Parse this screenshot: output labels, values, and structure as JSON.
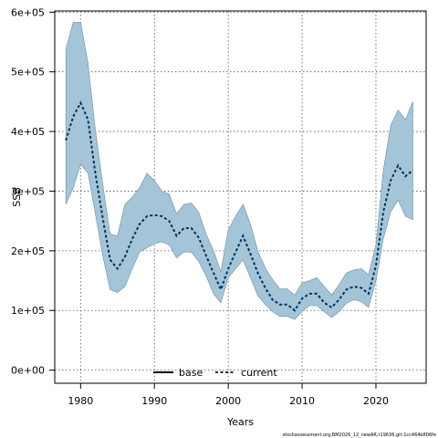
{
  "chart_data": {
    "type": "area",
    "xlabel": "Years",
    "ylabel": "SSB",
    "xlim": [
      1976.5,
      2026.8
    ],
    "ylim": [
      -22000,
      602000
    ],
    "x_ticks": [
      1980,
      1990,
      2000,
      2010,
      2020
    ],
    "y_ticks": [
      0,
      100000,
      200000,
      300000,
      400000,
      500000,
      600000
    ],
    "x_tick_labels": [
      "1980",
      "1990",
      "2000",
      "2010",
      "2020"
    ],
    "y_tick_labels": [
      "0e+00",
      "1e+05",
      "2e+05",
      "3e+05",
      "4e+05",
      "5e+05",
      "6e+05"
    ],
    "grid": true,
    "legend_position": "bottom-center",
    "x": [
      1978,
      1979,
      1980,
      1981,
      1982,
      1983,
      1984,
      1985,
      1986,
      1987,
      1988,
      1989,
      1990,
      1991,
      1992,
      1993,
      1994,
      1995,
      1996,
      1997,
      1998,
      1999,
      2000,
      2001,
      2002,
      2003,
      2004,
      2005,
      2006,
      2007,
      2008,
      2009,
      2010,
      2011,
      2012,
      2013,
      2014,
      2015,
      2016,
      2017,
      2018,
      2019,
      2020,
      2021,
      2022,
      2023,
      2024,
      2025
    ],
    "series": [
      {
        "name": "base",
        "style": "solid",
        "color": "#000000",
        "values": [
          null,
          null,
          null,
          null,
          null,
          null,
          null,
          null,
          null,
          null,
          null,
          null,
          null,
          null,
          null,
          null,
          null,
          null,
          null,
          null,
          null,
          null,
          null,
          null,
          null,
          null,
          null,
          null,
          null,
          null,
          null,
          null,
          null,
          null,
          null,
          null,
          null,
          null,
          null,
          null,
          null,
          null,
          null,
          null,
          null,
          null,
          null,
          null
        ]
      },
      {
        "name": "current",
        "style": "dotted",
        "color": "#00305a",
        "values": [
          385000,
          425000,
          448000,
          420000,
          330000,
          255000,
          185000,
          170000,
          190000,
          220000,
          245000,
          258000,
          260000,
          258000,
          250000,
          225000,
          238000,
          238000,
          222000,
          192000,
          163000,
          135000,
          170000,
          198000,
          225000,
          195000,
          163000,
          138000,
          118000,
          110000,
          110000,
          100000,
          120000,
          128000,
          128000,
          113000,
          105000,
          118000,
          135000,
          140000,
          138000,
          128000,
          175000,
          265000,
          318000,
          343000,
          325000,
          335000
        ],
        "lower": [
          278000,
          305000,
          345000,
          330000,
          262000,
          192000,
          135000,
          130000,
          140000,
          170000,
          198000,
          205000,
          212000,
          215000,
          210000,
          188000,
          198000,
          198000,
          182000,
          158000,
          128000,
          113000,
          155000,
          170000,
          185000,
          155000,
          125000,
          110000,
          98000,
          90000,
          90000,
          85000,
          98000,
          108000,
          108000,
          98000,
          88000,
          98000,
          112000,
          118000,
          115000,
          105000,
          150000,
          220000,
          265000,
          285000,
          258000,
          252000
        ],
        "upper": [
          538000,
          583000,
          583000,
          515000,
          403000,
          312000,
          228000,
          225000,
          278000,
          290000,
          306000,
          330000,
          318000,
          300000,
          295000,
          262000,
          278000,
          280000,
          265000,
          228000,
          200000,
          165000,
          235000,
          258000,
          278000,
          245000,
          200000,
          172000,
          152000,
          136000,
          136000,
          126000,
          146000,
          150000,
          155000,
          140000,
          126000,
          143000,
          163000,
          168000,
          170000,
          160000,
          210000,
          335000,
          410000,
          436000,
          420000,
          450000
        ],
        "band_color": "#a3c5d7"
      }
    ]
  },
  "footer_text": "stockassessment.org,BM2026_12_newAR,r19636,git:1cc464b806fe"
}
